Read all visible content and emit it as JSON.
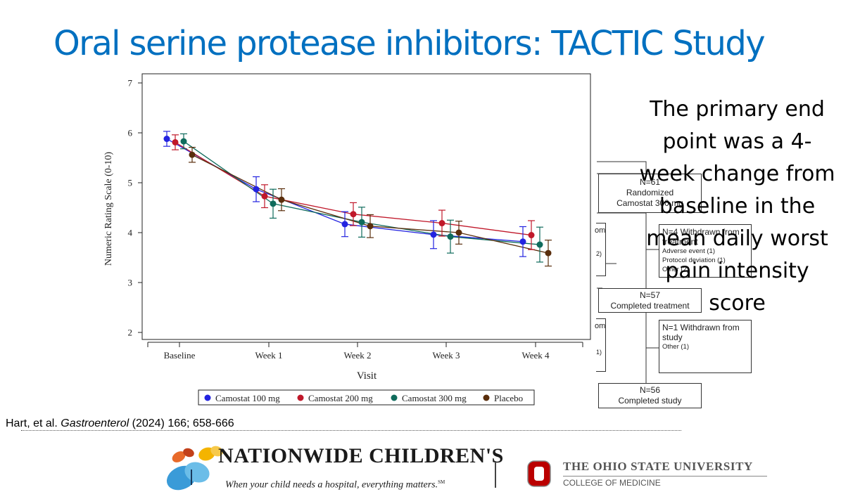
{
  "slide": {
    "title": "Oral serine protease inhibitors: TACTIC Study"
  },
  "callout": {
    "text": "The primary end point was a 4-week change from baseline in the mean daily worst pain intensity score"
  },
  "citation": {
    "authors": "Hart, et al. ",
    "journal": "Gastroenterol",
    "details": " (2024) 166; 658-666"
  },
  "flowchart": {
    "box1": {
      "line1": "N=61",
      "line2": "Randomized",
      "line3": "Camostat 300 mg"
    },
    "box2": {
      "title1": "N=4 Withdrawn from",
      "title2": "treatment",
      "items": [
        "Adverse event (1)",
        "Protocol deviation (1)",
        "Other (2)"
      ]
    },
    "box3": {
      "line1": "N=57",
      "line2": "Completed treatment"
    },
    "box4": {
      "title1": "N=1 Withdrawn from",
      "title2": "study",
      "items": [
        "Other (1)"
      ]
    },
    "box5": {
      "line1": "N=56",
      "line2": "Completed study"
    },
    "left_fragments": {
      "top_text": "om",
      "top_count": "2)",
      "mid_text": "om",
      "mid_count": "1)"
    }
  },
  "logos": {
    "nch": {
      "name": "NATIONWIDE CHILDREN'S",
      "tagline": "When your child needs a hospital, everything matters.",
      "tm": "SM"
    },
    "osu": {
      "name": "THE OHIO STATE UNIVERSITY",
      "college": "COLLEGE OF MEDICINE"
    }
  },
  "chart_data": {
    "type": "line",
    "xlabel": "Visit",
    "ylabel": "Numeric Rating Scale (0-10)",
    "categories": [
      "Baseline",
      "Week 1",
      "Week 2",
      "Week 3",
      "Week 4"
    ],
    "ylim": [
      2,
      7
    ],
    "yticks": [
      2,
      3,
      4,
      5,
      6,
      7
    ],
    "error_bars": true,
    "legend_position": "bottom",
    "series": [
      {
        "name": "Camostat 100 mg",
        "color": "#2323e0",
        "values": [
          5.88,
          4.87,
          4.17,
          3.96,
          3.82
        ],
        "lower": [
          5.73,
          4.62,
          3.92,
          3.68,
          3.52
        ],
        "upper": [
          6.03,
          5.12,
          4.42,
          4.24,
          4.12
        ]
      },
      {
        "name": "Camostat 200 mg",
        "color": "#c0182a",
        "values": [
          5.81,
          4.73,
          4.37,
          4.19,
          3.95
        ],
        "lower": [
          5.66,
          4.5,
          4.14,
          3.93,
          3.66
        ],
        "upper": [
          5.96,
          4.96,
          4.6,
          4.45,
          4.24
        ]
      },
      {
        "name": "Camostat 300 mg",
        "color": "#0f6b5c",
        "values": [
          5.83,
          4.58,
          4.21,
          3.92,
          3.76
        ],
        "lower": [
          5.68,
          4.29,
          3.91,
          3.59,
          3.41
        ],
        "upper": [
          5.98,
          4.87,
          4.51,
          4.25,
          4.11
        ]
      },
      {
        "name": "Placebo",
        "color": "#5a2e0c",
        "values": [
          5.56,
          4.66,
          4.13,
          4.0,
          3.59
        ],
        "lower": [
          5.41,
          4.44,
          3.9,
          3.77,
          3.33
        ],
        "upper": [
          5.71,
          4.88,
          4.36,
          4.23,
          3.85
        ]
      }
    ]
  }
}
